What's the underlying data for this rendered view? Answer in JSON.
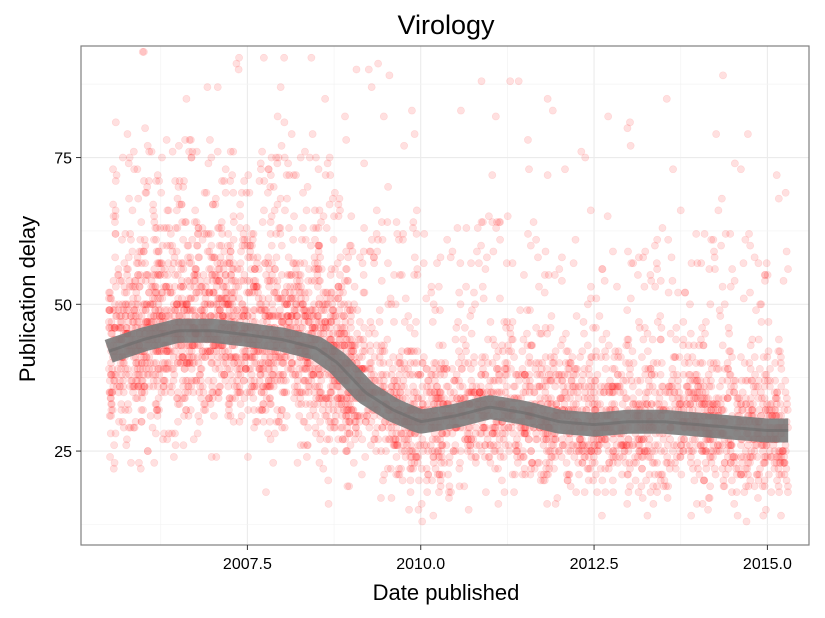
{
  "chart_data": {
    "type": "scatter",
    "title": "Virology",
    "xlabel": "Date published",
    "ylabel": "Publication delay",
    "xlim": [
      2005.1,
      2015.6
    ],
    "ylim": [
      9,
      94
    ],
    "x_ticks": [
      2007.5,
      2010.0,
      2012.5,
      2015.0
    ],
    "x_tick_labels": [
      "2007.5",
      "2010.0",
      "2012.5",
      "2015.0"
    ],
    "y_ticks": [
      25,
      50,
      75
    ],
    "y_tick_labels": [
      "25",
      "50",
      "75"
    ],
    "grid": true,
    "point_color": "#ff0000",
    "point_alpha": 0.12,
    "smooth_color": "#7a7a7a",
    "x_range_points": [
      2005.5,
      2015.3
    ],
    "smooth": {
      "x": [
        2005.5,
        2006.0,
        2006.5,
        2007.0,
        2007.5,
        2008.0,
        2008.5,
        2008.8,
        2009.2,
        2009.6,
        2010.0,
        2010.5,
        2011.0,
        2011.5,
        2012.0,
        2012.5,
        2013.0,
        2013.5,
        2014.0,
        2014.5,
        2015.0,
        2015.3
      ],
      "y": [
        42,
        44,
        45.5,
        45.5,
        44.8,
        44,
        42.5,
        40,
        35,
        32,
        30,
        31,
        32.5,
        31.5,
        30,
        29.5,
        30,
        30,
        29.5,
        29,
        28.5,
        28.5
      ]
    },
    "density": [
      {
        "from": 2005.5,
        "to": 2009.0,
        "count": 2200
      },
      {
        "from": 2009.0,
        "to": 2015.3,
        "count": 2500
      }
    ]
  }
}
